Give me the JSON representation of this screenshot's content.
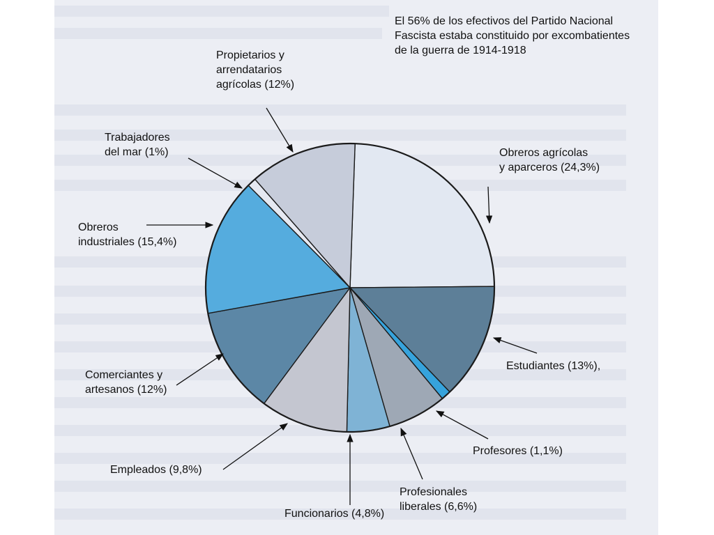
{
  "chart_data": {
    "type": "pie",
    "note": "El 56% de los efectivos del Partido Nacional Fascista estaba constituido por excombatientes de la guerra de 1914-1918",
    "slices": [
      {
        "label_lines": [
          "Obreros agrícolas",
          "y aparceros (24,3%)"
        ],
        "value": 24.3,
        "color": "#e2e8f2"
      },
      {
        "label_lines": [
          "Estudiantes (13%),"
        ],
        "value": 13.0,
        "color": "#5d7f98"
      },
      {
        "label_lines": [
          "Profesores (1,1%)"
        ],
        "value": 1.1,
        "color": "#36a3dc"
      },
      {
        "label_lines": [
          "Profesionales",
          "liberales (6,6%)"
        ],
        "value": 6.6,
        "color": "#9ea8b5"
      },
      {
        "label_lines": [
          "Funcionarios (4,8%)"
        ],
        "value": 4.8,
        "color": "#7fb3d5"
      },
      {
        "label_lines": [
          "Empleados (9,8%)"
        ],
        "value": 9.8,
        "color": "#c4c6d0"
      },
      {
        "label_lines": [
          "Comerciantes y",
          "artesanos (12%)"
        ],
        "value": 12.0,
        "color": "#5c87a6"
      },
      {
        "label_lines": [
          "Obreros",
          "industriales (15,4%)"
        ],
        "value": 15.4,
        "color": "#55acde"
      },
      {
        "label_lines": [
          "Trabajadores",
          "del mar (1%)"
        ],
        "value": 1.0,
        "color": "#e6e9f2"
      },
      {
        "label_lines": [
          "Propietarios y",
          "arrendatarios",
          "agrícolas (12%)"
        ],
        "value": 12.0,
        "color": "#c6ccda"
      }
    ]
  }
}
